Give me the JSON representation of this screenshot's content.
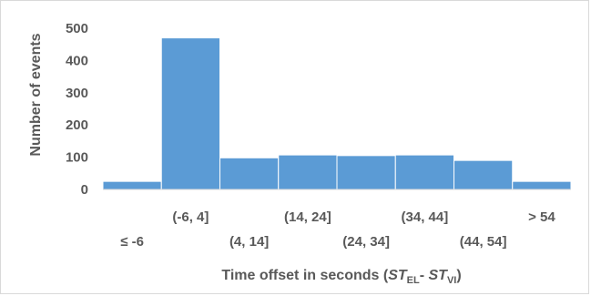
{
  "chart_data": {
    "type": "bar",
    "categories": [
      "≤ -6",
      "(-6, 4]",
      "(4, 14]",
      "(14, 24]",
      "(24, 34]",
      "(34, 44]",
      "(44, 54]",
      "> 54"
    ],
    "values": [
      25,
      470,
      98,
      107,
      105,
      107,
      90,
      25
    ],
    "ylabel": "Number of events",
    "xlabel": {
      "prefix": "Time offset in seconds (",
      "st1": "ST",
      "sub1": "EL",
      "dash": "- ",
      "st2": "ST",
      "sub2": "VI",
      "suffix": ")"
    },
    "ylim": [
      0,
      500
    ],
    "yticks": [
      0,
      100,
      200,
      300,
      400,
      500
    ],
    "bar_color": "#5b9bd5",
    "grid": false
  }
}
